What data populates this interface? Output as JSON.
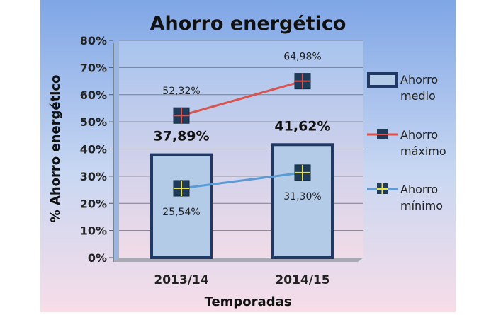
{
  "chart_data": {
    "type": "bar",
    "title": "Ahorro energético",
    "xlabel": "Temporadas",
    "ylabel": "% Ahorro energético",
    "categories": [
      "2013/14",
      "2014/15"
    ],
    "ylim": [
      0,
      80
    ],
    "yticks": [
      "0%",
      "10%",
      "20%",
      "30%",
      "40%",
      "50%",
      "60%",
      "70%",
      "80%"
    ],
    "grid": true,
    "legend_position": "right",
    "series": [
      {
        "name": "Ahorro medio",
        "kind": "bar",
        "values": [
          37.89,
          41.62
        ],
        "labels": [
          "37,89%",
          "41,62%"
        ],
        "color": "#b3cbe6",
        "edge_color": "#1f3864"
      },
      {
        "name": "Ahorro máximo",
        "kind": "line",
        "values": [
          52.32,
          64.98
        ],
        "labels": [
          "52,32%",
          "64,98%"
        ],
        "color": "#d9534f"
      },
      {
        "name": "Ahorro mínimo",
        "kind": "line",
        "values": [
          25.54,
          31.3
        ],
        "labels": [
          "25,54%",
          "31,30%"
        ],
        "color": "#5b9bd5"
      }
    ],
    "legend": {
      "medio": [
        "Ahorro",
        "medio"
      ],
      "maximo": [
        "Ahorro",
        "máximo"
      ],
      "minimo": [
        "Ahorro",
        "mínimo"
      ]
    }
  }
}
